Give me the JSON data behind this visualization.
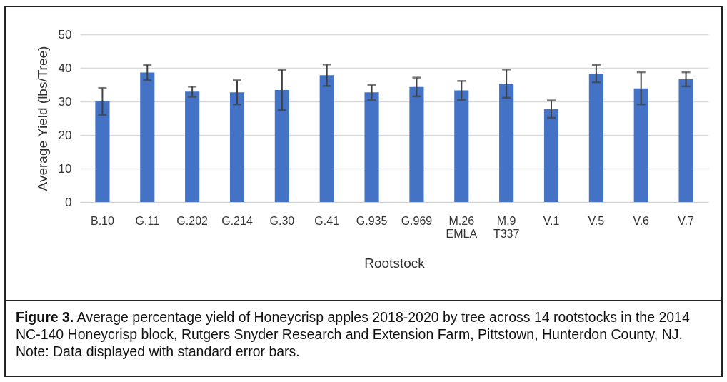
{
  "chart_data": {
    "type": "bar",
    "categories": [
      "B.10",
      "G.11",
      "G.202",
      "G.214",
      "G.30",
      "G.41",
      "G.935",
      "G.969",
      "M.26\nEMLA",
      "M.9\nT337",
      "V.1",
      "V.5",
      "V.6",
      "V.7"
    ],
    "values": [
      30.0,
      38.6,
      32.9,
      32.7,
      33.4,
      37.8,
      32.7,
      34.3,
      33.3,
      35.3,
      27.7,
      38.3,
      33.9,
      36.6
    ],
    "errors": [
      4.0,
      2.3,
      1.5,
      3.6,
      6.0,
      3.2,
      2.2,
      2.8,
      2.8,
      4.2,
      2.6,
      2.6,
      4.8,
      2.1
    ],
    "color": "#4472c4",
    "xlabel": "Rootstock",
    "ylabel": "Average Yield (lbs/Tree)",
    "ylim": [
      0,
      50
    ],
    "yticks": [
      0,
      10,
      20,
      30,
      40,
      50
    ],
    "grid": "y",
    "annotations": [
      "Figure 3. Average percentage yield of Honeycrisp apples 2018-2020 by tree across 14 rootstocks in the 2014 NC-140 Honeycrisp block, Rutgers Snyder Research and Extension Farm, Pittstown, Hunterdon County, NJ. Note: Data displayed with standard error bars."
    ]
  }
}
